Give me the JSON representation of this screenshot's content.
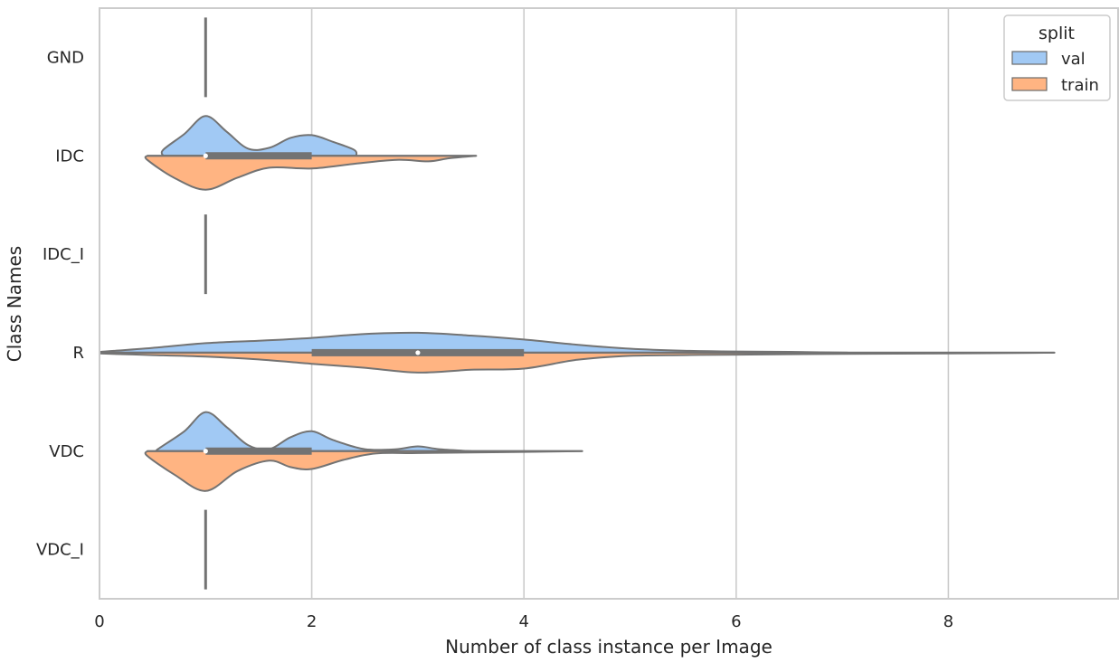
{
  "chart_data": {
    "type": "violin",
    "orientation": "horizontal",
    "split": true,
    "title": "",
    "xlabel": "Number of class instance per Image",
    "ylabel": "Class Names",
    "xlim": [
      0,
      9.6
    ],
    "xticks": [
      0,
      2,
      4,
      6,
      8
    ],
    "xtick_labels": [
      "0",
      "2",
      "4",
      "6",
      "8"
    ],
    "grid": "x",
    "categories": [
      "GND",
      "IDC",
      "IDC_I",
      "R",
      "VDC",
      "VDC_I"
    ],
    "legend": {
      "title": "split",
      "placement": "top-right",
      "entries": [
        {
          "name": "val",
          "color": "#a1c9f4"
        },
        {
          "name": "train",
          "color": "#ffb482"
        }
      ]
    },
    "colors": {
      "val": "#a1c9f4",
      "train": "#ffb482",
      "outline": "#737373",
      "grid": "#cccccc",
      "spine": "#cccccc"
    },
    "violins": [
      {
        "category": "GND",
        "degenerate": true,
        "extent": [
          1,
          1
        ],
        "box": null
      },
      {
        "category": "IDC",
        "val": {
          "x": [
            0.6,
            0.6,
            0.8,
            1,
            1.2,
            1.4,
            1.6,
            1.8,
            2,
            2.2,
            2.4,
            2.42
          ],
          "density": [
            0,
            0.15,
            0.55,
            1,
            0.6,
            0.18,
            0.2,
            0.45,
            0.52,
            0.35,
            0.15,
            0
          ]
        },
        "train": {
          "x": [
            0.45,
            0.45,
            0.7,
            1,
            1.3,
            1.6,
            2,
            2.4,
            2.8,
            3.1,
            3.3,
            3.55
          ],
          "density": [
            0,
            0.1,
            0.55,
            0.85,
            0.55,
            0.3,
            0.32,
            0.2,
            0.1,
            0.14,
            0.06,
            0
          ]
        },
        "box": {
          "q1": 1,
          "median": 1,
          "q3": 2,
          "whisker_low": 1,
          "whisker_high": 2
        }
      },
      {
        "category": "IDC_I",
        "degenerate": true,
        "extent": [
          1,
          1
        ],
        "box": null
      },
      {
        "category": "R",
        "val": {
          "x": [
            0,
            0.5,
            1,
            1.5,
            2,
            2.5,
            3,
            3.5,
            4,
            4.5,
            5,
            5.5,
            6,
            6.5,
            7.05
          ],
          "density": [
            0.02,
            0.12,
            0.24,
            0.3,
            0.37,
            0.47,
            0.5,
            0.43,
            0.33,
            0.2,
            0.1,
            0.05,
            0.03,
            0.02,
            0
          ]
        },
        "train": {
          "x": [
            0,
            0.5,
            1,
            1.5,
            2,
            2.5,
            3,
            3.5,
            4,
            4.5,
            5,
            5.5,
            6,
            7,
            8,
            9
          ],
          "density": [
            0.02,
            0.06,
            0.1,
            0.17,
            0.28,
            0.38,
            0.5,
            0.43,
            0.4,
            0.18,
            0.08,
            0.06,
            0.05,
            0.03,
            0.02,
            0
          ]
        },
        "box": {
          "q1": 2,
          "median": 3,
          "q3": 4,
          "whisker_low": 2,
          "whisker_high": 4
        }
      },
      {
        "category": "VDC",
        "val": {
          "x": [
            0.55,
            0.55,
            0.8,
            1,
            1.2,
            1.4,
            1.6,
            1.8,
            2,
            2.2,
            2.5,
            2.8,
            3,
            3.2,
            3.5
          ],
          "density": [
            0,
            0.05,
            0.5,
            0.98,
            0.6,
            0.15,
            0.05,
            0.35,
            0.5,
            0.28,
            0.05,
            0.05,
            0.12,
            0.05,
            0
          ]
        },
        "train": {
          "x": [
            0.45,
            0.45,
            0.7,
            1,
            1.3,
            1.6,
            1.8,
            2,
            2.3,
            2.6,
            3,
            3.6,
            4,
            4.55
          ],
          "density": [
            0,
            0.12,
            0.58,
            1,
            0.5,
            0.24,
            0.4,
            0.45,
            0.22,
            0.06,
            0.05,
            0.03,
            0.02,
            0
          ]
        },
        "box": {
          "q1": 1,
          "median": 1,
          "q3": 2,
          "whisker_low": 1,
          "whisker_high": 2
        }
      },
      {
        "category": "VDC_I",
        "degenerate": true,
        "extent": [
          1,
          1
        ],
        "box": null
      }
    ]
  }
}
